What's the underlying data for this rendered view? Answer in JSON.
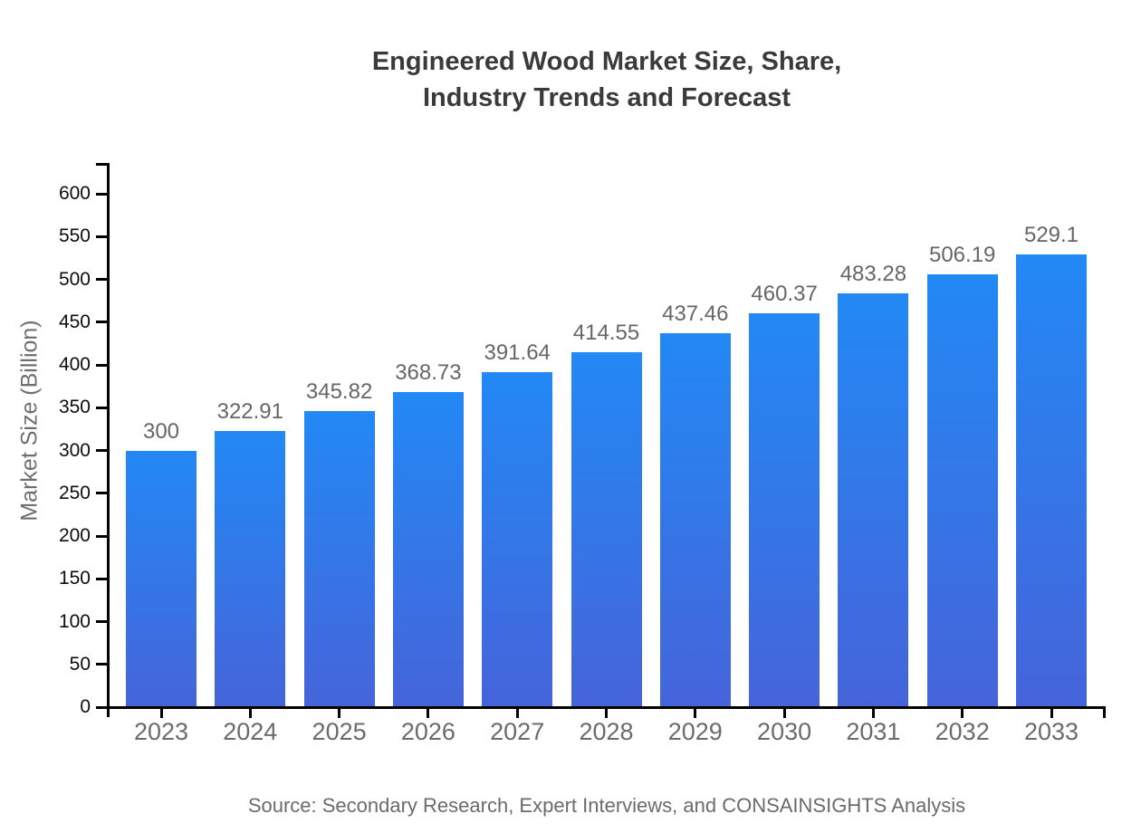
{
  "title": {
    "line1": "Engineered Wood Market Size, Share,",
    "line2": "Industry Trends and Forecast"
  },
  "source": "Source: Secondary Research, Expert Interviews, and CONSAINSIGHTS Analysis",
  "chart_data": {
    "type": "bar",
    "title": "Engineered Wood Market Size, Share, Industry Trends and Forecast",
    "categories": [
      "2023",
      "2024",
      "2025",
      "2026",
      "2027",
      "2028",
      "2029",
      "2030",
      "2031",
      "2032",
      "2033"
    ],
    "values": [
      300,
      322.91,
      345.82,
      368.73,
      391.64,
      414.55,
      437.46,
      460.37,
      483.28,
      506.19,
      529.1
    ],
    "value_labels": [
      "300",
      "322.91",
      "345.82",
      "368.73",
      "391.64",
      "414.55",
      "437.46",
      "460.37",
      "483.28",
      "506.19",
      "529.1"
    ],
    "xlabel": "",
    "ylabel": "Market Size (Billion)",
    "ylim": [
      0,
      600
    ],
    "ytick_step": 50,
    "ytick_labels": [
      "0",
      "50",
      "100",
      "150",
      "200",
      "250",
      "300",
      "350",
      "400",
      "450",
      "500",
      "550",
      "600"
    ],
    "grid": false,
    "legend": null,
    "colors": {
      "bar_gradient_top": "#2289F5",
      "bar_gradient_bottom": "#4664DA",
      "axis": "#000000",
      "title_text": "#3a3a3a",
      "value_label_text": "#666666",
      "category_label_text": "#6b6b6b",
      "ytick_label_text": "#0d0d0d",
      "axis_title_text": "#6f6f6f",
      "source_text": "#6b6b6b",
      "background": "#ffffff"
    }
  }
}
